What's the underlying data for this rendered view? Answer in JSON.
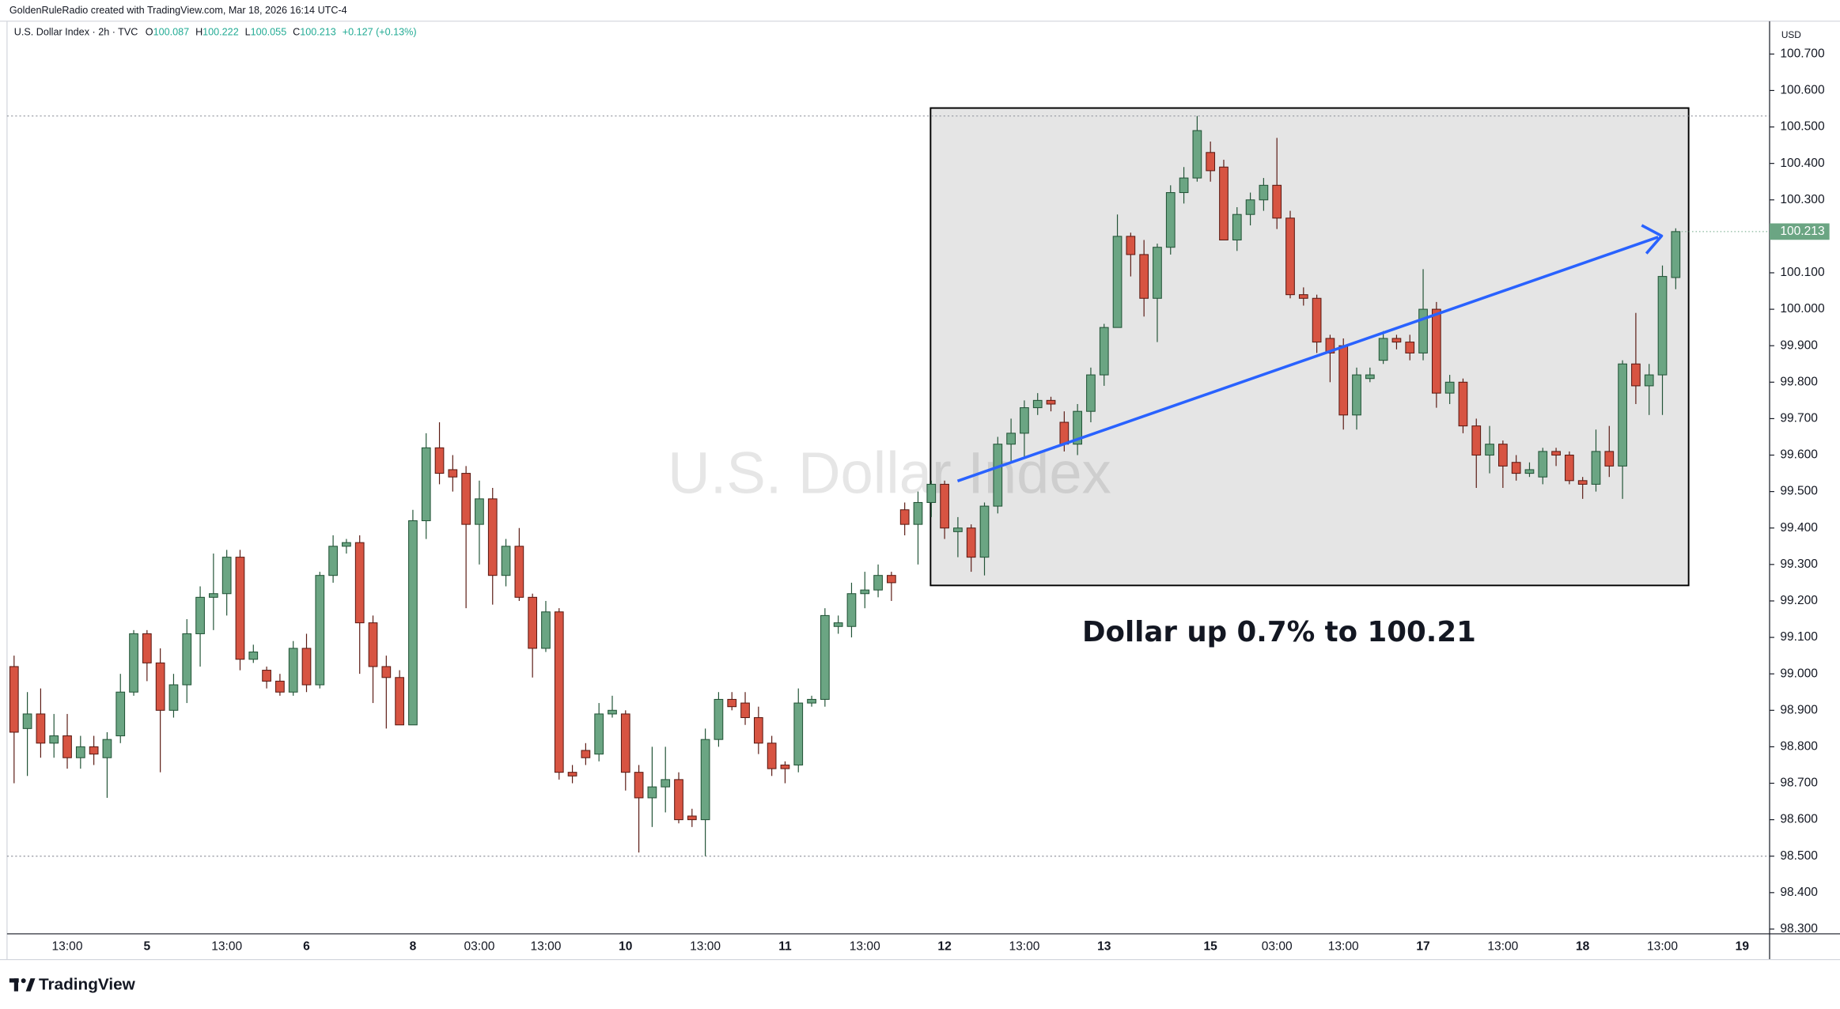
{
  "header": "GoldenRuleRadio created with TradingView.com, Mar 18, 2026 16:14 UTC-4",
  "brand": "TradingView",
  "chart_data": {
    "type": "candlestick",
    "title": "U.S. Dollar Index",
    "legend_meta": "· 2h · TVC",
    "ohlc_labels": [
      "O",
      "H",
      "L",
      "C"
    ],
    "change_label": "+0.127 (+0.13%)",
    "currency": "USD",
    "annotation": "Dollar up 0.7% to 100.21",
    "categories": [
      null,
      null,
      null,
      null,
      "13:00",
      null,
      null,
      null,
      null,
      null,
      "5",
      null,
      null,
      null,
      null,
      null,
      "13:00",
      null,
      null,
      null,
      null,
      null,
      "6",
      null,
      null,
      null,
      null,
      null,
      null,
      null,
      "8",
      null,
      null,
      null,
      null,
      "03:00",
      null,
      null,
      null,
      null,
      "13:00",
      null,
      null,
      null,
      null,
      null,
      "10",
      null,
      null,
      null,
      null,
      null,
      "13:00",
      null,
      null,
      null,
      null,
      null,
      "11",
      null,
      null,
      null,
      null,
      null,
      "13:00",
      null,
      null,
      null,
      null,
      null,
      "12",
      null,
      null,
      null,
      null,
      null,
      "13:00",
      null,
      null,
      null,
      null,
      null,
      "13",
      null,
      null,
      null,
      null,
      null,
      null,
      null,
      "15",
      null,
      null,
      null,
      null,
      "03:00",
      null,
      null,
      null,
      null,
      "13:00",
      null,
      null,
      null,
      null,
      null,
      "17",
      null,
      null,
      null,
      null,
      null,
      "13:00",
      null,
      null,
      null,
      null,
      null,
      "18",
      null,
      null,
      null,
      null,
      null,
      "13:00",
      null,
      null,
      null,
      null,
      null,
      "19"
    ],
    "open": [
      99.02,
      98.85,
      98.89,
      98.81,
      98.83,
      98.77,
      98.8,
      98.77,
      98.83,
      98.95,
      99.11,
      99.03,
      98.9,
      98.97,
      99.11,
      99.21,
      99.22,
      99.32,
      99.04,
      99.01,
      98.98,
      98.95,
      99.07,
      98.97,
      99.27,
      99.35,
      99.36,
      99.14,
      99.02,
      98.99,
      98.86,
      99.42,
      99.62,
      99.56,
      99.55,
      99.41,
      99.48,
      99.27,
      99.35,
      99.21,
      99.07,
      99.17,
      98.73,
      98.79,
      98.78,
      98.89,
      98.89,
      98.73,
      98.66,
      98.69,
      98.71,
      98.61,
      98.6,
      98.82,
      98.93,
      98.92,
      98.88,
      98.81,
      98.75,
      98.75,
      98.92,
      98.93,
      99.13,
      99.13,
      99.22,
      99.23,
      99.27,
      99.45,
      99.41,
      99.47,
      99.52,
      99.39,
      99.4,
      99.32,
      99.46,
      99.63,
      99.66,
      99.73,
      99.75,
      99.69,
      99.63,
      99.72,
      99.82,
      99.95,
      100.2,
      100.15,
      100.03,
      100.17,
      100.32,
      100.36,
      100.43,
      100.39,
      100.19,
      100.26,
      100.3,
      100.34,
      100.25,
      100.04,
      100.03,
      99.92,
      99.9,
      99.71,
      99.81,
      99.86,
      99.92,
      99.91,
      99.88,
      100.0,
      99.77,
      99.8,
      99.68,
      99.6,
      99.63,
      99.58,
      99.55,
      99.54,
      99.61,
      99.6,
      99.53,
      99.52,
      99.61,
      99.57,
      99.85,
      99.79,
      99.82,
      100.087,
      null,
      null,
      null,
      null,
      null
    ],
    "high": [
      99.05,
      98.95,
      98.96,
      98.89,
      98.89,
      98.83,
      98.83,
      98.84,
      99.0,
      99.12,
      99.12,
      99.07,
      99.0,
      99.15,
      99.24,
      99.33,
      99.34,
      99.34,
      99.08,
      99.02,
      99.0,
      99.09,
      99.11,
      99.28,
      99.38,
      99.37,
      99.38,
      99.16,
      99.05,
      99.01,
      99.45,
      99.66,
      99.69,
      99.6,
      99.57,
      99.53,
      99.51,
      99.37,
      99.4,
      99.22,
      99.2,
      99.18,
      98.75,
      98.81,
      98.92,
      98.94,
      98.9,
      98.75,
      98.8,
      98.8,
      98.73,
      98.63,
      98.85,
      98.95,
      98.95,
      98.95,
      98.91,
      98.83,
      98.76,
      98.96,
      98.94,
      99.18,
      99.16,
      99.25,
      99.28,
      99.3,
      99.28,
      99.47,
      99.5,
      99.53,
      99.53,
      99.43,
      99.41,
      99.47,
      99.65,
      99.7,
      99.75,
      99.77,
      99.76,
      99.72,
      99.74,
      99.84,
      99.96,
      100.26,
      100.21,
      100.19,
      100.18,
      100.34,
      100.39,
      100.53,
      100.46,
      100.41,
      100.28,
      100.32,
      100.36,
      100.47,
      100.27,
      100.06,
      100.04,
      99.93,
      99.92,
      99.84,
      99.84,
      99.94,
      99.93,
      99.93,
      100.11,
      100.02,
      99.82,
      99.81,
      99.7,
      99.68,
      99.64,
      99.6,
      99.58,
      99.62,
      99.62,
      99.61,
      99.54,
      99.67,
      99.68,
      99.86,
      99.99,
      99.85,
      100.12,
      100.222,
      null,
      null,
      null,
      null,
      null
    ],
    "low": [
      98.7,
      98.72,
      98.77,
      98.77,
      98.74,
      98.74,
      98.75,
      98.66,
      98.81,
      98.94,
      98.98,
      98.73,
      98.88,
      98.92,
      99.02,
      99.12,
      99.16,
      99.01,
      99.03,
      98.96,
      98.94,
      98.94,
      98.95,
      98.96,
      99.25,
      99.33,
      99.0,
      98.92,
      98.85,
      98.86,
      98.86,
      99.37,
      99.52,
      99.5,
      99.18,
      99.3,
      99.19,
      99.24,
      99.2,
      98.99,
      99.06,
      98.71,
      98.7,
      98.75,
      98.76,
      98.88,
      98.68,
      98.51,
      98.58,
      98.62,
      98.59,
      98.58,
      98.5,
      98.8,
      98.9,
      98.86,
      98.78,
      98.72,
      98.7,
      98.73,
      98.91,
      98.91,
      99.11,
      99.1,
      99.18,
      99.21,
      99.2,
      99.38,
      99.3,
      99.43,
      99.37,
      99.32,
      99.28,
      99.27,
      99.44,
      99.58,
      99.59,
      99.71,
      99.72,
      99.61,
      99.6,
      99.69,
      99.79,
      99.95,
      100.09,
      99.98,
      99.91,
      100.15,
      100.29,
      100.35,
      100.35,
      100.19,
      100.16,
      100.23,
      100.27,
      100.22,
      100.03,
      100.01,
      99.88,
      99.8,
      99.67,
      99.67,
      99.8,
      99.85,
      99.89,
      99.86,
      99.86,
      99.73,
      99.74,
      99.66,
      99.51,
      99.55,
      99.51,
      99.53,
      99.54,
      99.52,
      99.57,
      99.52,
      99.48,
      99.5,
      99.54,
      99.48,
      99.74,
      99.71,
      99.71,
      100.055,
      null,
      null,
      null,
      null,
      null
    ],
    "close": [
      98.84,
      98.89,
      98.81,
      98.83,
      98.77,
      98.8,
      98.78,
      98.82,
      98.95,
      99.11,
      99.03,
      98.9,
      98.97,
      99.11,
      99.21,
      99.22,
      99.32,
      99.04,
      99.06,
      98.98,
      98.95,
      99.07,
      98.97,
      99.27,
      99.35,
      99.36,
      99.14,
      99.02,
      98.99,
      98.86,
      99.42,
      99.62,
      99.55,
      99.54,
      99.41,
      99.48,
      99.27,
      99.35,
      99.21,
      99.07,
      99.17,
      98.73,
      98.72,
      98.77,
      98.89,
      98.9,
      98.73,
      98.66,
      98.69,
      98.71,
      98.6,
      98.6,
      98.82,
      98.93,
      98.91,
      98.88,
      98.81,
      98.74,
      98.74,
      98.92,
      98.93,
      99.16,
      99.14,
      99.22,
      99.23,
      99.27,
      99.25,
      99.41,
      99.47,
      99.52,
      99.4,
      99.4,
      99.32,
      99.46,
      99.63,
      99.66,
      99.73,
      99.75,
      99.74,
      99.63,
      99.72,
      99.82,
      99.95,
      100.2,
      100.15,
      100.03,
      100.17,
      100.32,
      100.36,
      100.49,
      100.38,
      100.19,
      100.26,
      100.3,
      100.34,
      100.25,
      100.04,
      100.03,
      99.91,
      99.88,
      99.71,
      99.82,
      99.82,
      99.92,
      99.91,
      99.88,
      100.0,
      99.77,
      99.8,
      99.68,
      99.6,
      99.63,
      99.57,
      99.55,
      99.56,
      99.61,
      99.6,
      99.53,
      99.52,
      99.61,
      99.57,
      99.85,
      99.79,
      99.82,
      100.09,
      100.213,
      null,
      null,
      null,
      null,
      null
    ],
    "up_color": "#6ba583",
    "down_color": "#d75442",
    "up_border": "#225437",
    "down_border": "#5b1a13",
    "ylim": [
      98.287,
      100.79
    ],
    "yticks": [
      {
        "value": 98.3,
        "label": "98.300"
      },
      {
        "value": 98.4,
        "label": "98.400"
      },
      {
        "value": 98.5,
        "label": "98.500"
      },
      {
        "value": 98.6,
        "label": "98.600"
      },
      {
        "value": 98.7,
        "label": "98.700"
      },
      {
        "value": 98.8,
        "label": "98.800"
      },
      {
        "value": 98.9,
        "label": "98.900"
      },
      {
        "value": 99,
        "label": "99.000"
      },
      {
        "value": 99.1,
        "label": "99.100"
      },
      {
        "value": 99.2,
        "label": "99.200"
      },
      {
        "value": 99.3,
        "label": "99.300"
      },
      {
        "value": 99.4,
        "label": "99.400"
      },
      {
        "value": 99.5,
        "label": "99.500"
      },
      {
        "value": 99.6,
        "label": "99.600"
      },
      {
        "value": 99.7,
        "label": "99.700"
      },
      {
        "value": 99.8,
        "label": "99.800"
      },
      {
        "value": 99.9,
        "label": "99.900"
      },
      {
        "value": 100,
        "label": "100.000"
      },
      {
        "value": 100.1,
        "label": "100.100"
      },
      {
        "value": 100.2,
        "label": "100.200"
      },
      {
        "value": 100.3,
        "label": "100.300"
      },
      {
        "value": 100.4,
        "label": "100.400"
      },
      {
        "value": 100.5,
        "label": "100.500"
      },
      {
        "value": 100.6,
        "label": "100.600"
      },
      {
        "value": 100.7,
        "label": "100.700"
      }
    ],
    "grid": false
  }
}
